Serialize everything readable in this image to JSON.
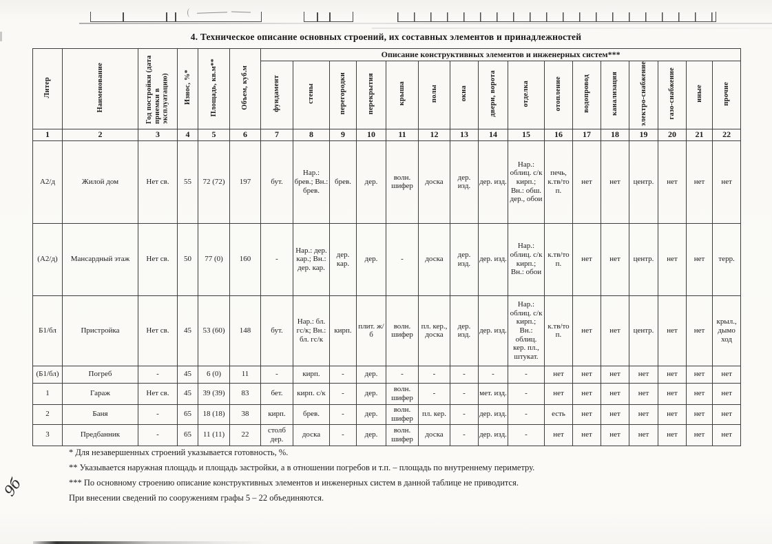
{
  "page": {
    "title": "4. Техническое описание основных строений, их составных элементов и принадлежностей"
  },
  "table": {
    "group_header": "Описание конструктивных элементов и инженерных систем***",
    "columns": [
      {
        "label": "Литер",
        "num": "1"
      },
      {
        "label": "Наименование",
        "num": "2"
      },
      {
        "label": "Год постройки (дата приемки в эксплуатацию)",
        "num": "3"
      },
      {
        "label": "Износ, %*",
        "num": "4"
      },
      {
        "label": "Площадь, кв.м**",
        "num": "5"
      },
      {
        "label": "Объем, куб.м",
        "num": "6"
      },
      {
        "label": "фундамент",
        "num": "7"
      },
      {
        "label": "стены",
        "num": "8"
      },
      {
        "label": "перегородки",
        "num": "9"
      },
      {
        "label": "перекрытия",
        "num": "10"
      },
      {
        "label": "крыша",
        "num": "11"
      },
      {
        "label": "полы",
        "num": "12"
      },
      {
        "label": "окна",
        "num": "13"
      },
      {
        "label": "двери, ворота",
        "num": "14"
      },
      {
        "label": "отделка",
        "num": "15"
      },
      {
        "label": "отопление",
        "num": "16"
      },
      {
        "label": "водопровод",
        "num": "17"
      },
      {
        "label": "канализация",
        "num": "18"
      },
      {
        "label": "электро-снабжение",
        "num": "19"
      },
      {
        "label": "газо-снабжение",
        "num": "20"
      },
      {
        "label": "иные",
        "num": "21"
      },
      {
        "label": "прочие",
        "num": "22"
      }
    ],
    "rows": [
      [
        "А2/д",
        "Жилой дом",
        "Нет св.",
        "55",
        "72 (72)",
        "197",
        "бут.",
        "Нар.: брев.; Вн.: брев.",
        "брев.",
        "дер.",
        "волн. шифер",
        "доска",
        "дер. изд.",
        "дер. изд.",
        "Нар.: облиц. с/к кирп.; Вн.: обш. дер., обои",
        "печь, к.тв/то п.",
        "нет",
        "нет",
        "центр.",
        "нет",
        "нет",
        "нет"
      ],
      [
        "(А2/д)",
        "Мансардный этаж",
        "Нет св.",
        "50",
        "77 (0)",
        "160",
        "-",
        "Нар.: дер. кар.; Вн.: дер. кар.",
        "дер. кар.",
        "дер.",
        "-",
        "доска",
        "дер. изд.",
        "дер. изд.",
        "Нар.: облиц. с/к кирп.; Вн.: обои",
        "к.тв/то п.",
        "нет",
        "нет",
        "центр.",
        "нет",
        "нет",
        "терр."
      ],
      [
        "Б1/бл",
        "Пристройка",
        "Нет св.",
        "45",
        "53 (60)",
        "148",
        "бут.",
        "Нар.: бл. гс/к; Вн.: бл. гс/к",
        "кирп.",
        "плит. ж/б",
        "волн. шифер",
        "пл. кер., доска",
        "дер. изд.",
        "дер. изд.",
        "Нар.: облиц. с/к кирп.; Вн.: облиц. кер. пл., штукат.",
        "к.тв/то п.",
        "нет",
        "нет",
        "центр.",
        "нет",
        "нет",
        "крыл., дымо ход"
      ],
      [
        "(Б1/бл)",
        "Погреб",
        "-",
        "45",
        "6 (0)",
        "11",
        "-",
        "кирп.",
        "-",
        "дер.",
        "-",
        "-",
        "-",
        "-",
        "-",
        "нет",
        "нет",
        "нет",
        "нет",
        "нет",
        "нет",
        "нет"
      ],
      [
        "1",
        "Гараж",
        "Нет св.",
        "45",
        "39 (39)",
        "83",
        "бет.",
        "кирп. с/к",
        "-",
        "дер.",
        "волн. шифер",
        "-",
        "-",
        "мет. изд.",
        "-",
        "нет",
        "нет",
        "нет",
        "нет",
        "нет",
        "нет",
        "нет"
      ],
      [
        "2",
        "Баня",
        "-",
        "65",
        "18 (18)",
        "38",
        "кирп.",
        "брев.",
        "-",
        "дер.",
        "волн. шифер",
        "пл. кер.",
        "-",
        "дер. изд.",
        "-",
        "есть",
        "нет",
        "нет",
        "нет",
        "нет",
        "нет",
        "нет"
      ],
      [
        "3",
        "Предбанник",
        "-",
        "65",
        "11 (11)",
        "22",
        "столб дер.",
        "доска",
        "-",
        "дер.",
        "волн. шифер",
        "доска",
        "-",
        "дер. изд.",
        "-",
        "нет",
        "нет",
        "нет",
        "нет",
        "нет",
        "нет",
        "нет"
      ]
    ]
  },
  "footnotes": {
    "items": [
      "* Для незавершенных строений указывается готовность, %.",
      "** Указывается наружная площадь и площадь застройки, а в отношении погребов и т.п. – площадь по внутреннему периметру.",
      "*** По основному строению описание конструктивных элементов и инженерных систем в данной таблице не приводится.",
      "При внесении сведений по сооружениям  графы 5 – 22 объединяются."
    ]
  },
  "annotations": {
    "handwritten_mark": "9б"
  }
}
